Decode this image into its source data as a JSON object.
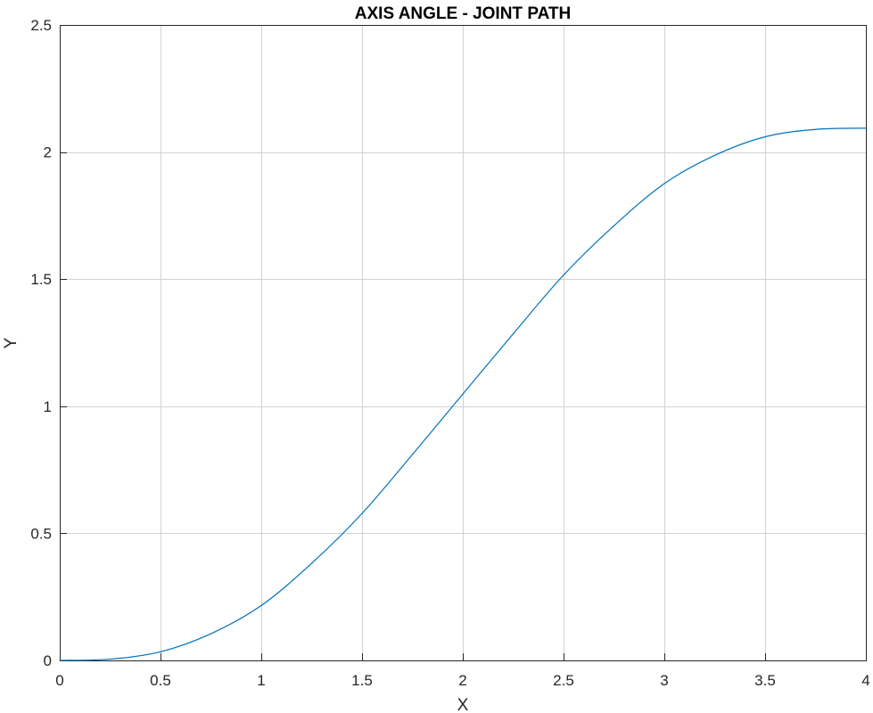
{
  "chart_data": {
    "type": "line",
    "title": "AXIS ANGLE - JOINT PATH",
    "xlabel": "X",
    "ylabel": "Y",
    "xlim": [
      0,
      4
    ],
    "ylim": [
      0,
      2.5
    ],
    "xticks": [
      "0",
      "0.5",
      "1",
      "1.5",
      "2",
      "2.5",
      "3",
      "3.5",
      "4"
    ],
    "yticks": [
      "0",
      "0.5",
      "1",
      "1.5",
      "2",
      "2.5"
    ],
    "grid": true,
    "line_color": "#0072bd",
    "series": [
      {
        "x": [
          0,
          0.25,
          0.5,
          0.75,
          1,
          1.25,
          1.5,
          1.75,
          2,
          2.25,
          2.5,
          2.75,
          3,
          3.25,
          3.5,
          3.75,
          4
        ],
        "y": [
          0,
          0.005,
          0.034,
          0.105,
          0.216,
          0.382,
          0.578,
          0.81,
          1.048,
          1.285,
          1.516,
          1.71,
          1.876,
          1.987,
          2.06,
          2.089,
          2.094
        ]
      }
    ]
  }
}
